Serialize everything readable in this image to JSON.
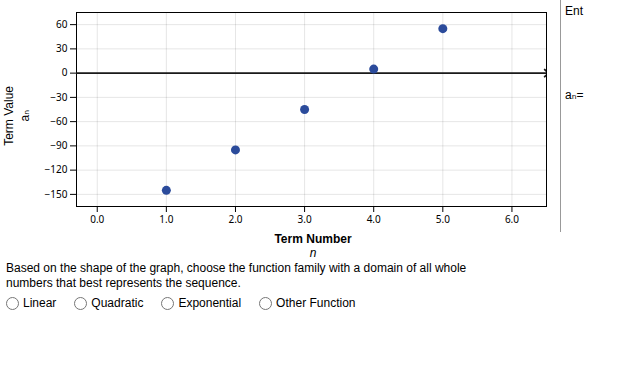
{
  "chart_data": {
    "type": "scatter",
    "xlabel": "Term Number",
    "ylabel": "Term Value",
    "annotations": [
      "aₙ",
      "n",
      "Ent",
      "aₙ=",
      "Based on the shape of the graph, choose the function family with a domain of all whole",
      "numbers that best represents the sequence."
    ],
    "options": [
      "Linear",
      "Quadratic",
      "Exponential",
      "Other Function"
    ],
    "x": [
      1,
      2,
      3,
      4,
      5
    ],
    "values": [
      -145,
      -95,
      -45,
      5,
      55
    ],
    "color": "#2B4B9B",
    "hline": 0,
    "xlim": [
      -0.3,
      6.5
    ],
    "ylim": [
      -165,
      75
    ],
    "xticks": [
      0,
      1,
      2,
      3,
      4,
      5,
      6
    ],
    "yticks": [
      60,
      30,
      0,
      -30,
      -60,
      -90,
      -120,
      -150
    ],
    "grid": true
  }
}
